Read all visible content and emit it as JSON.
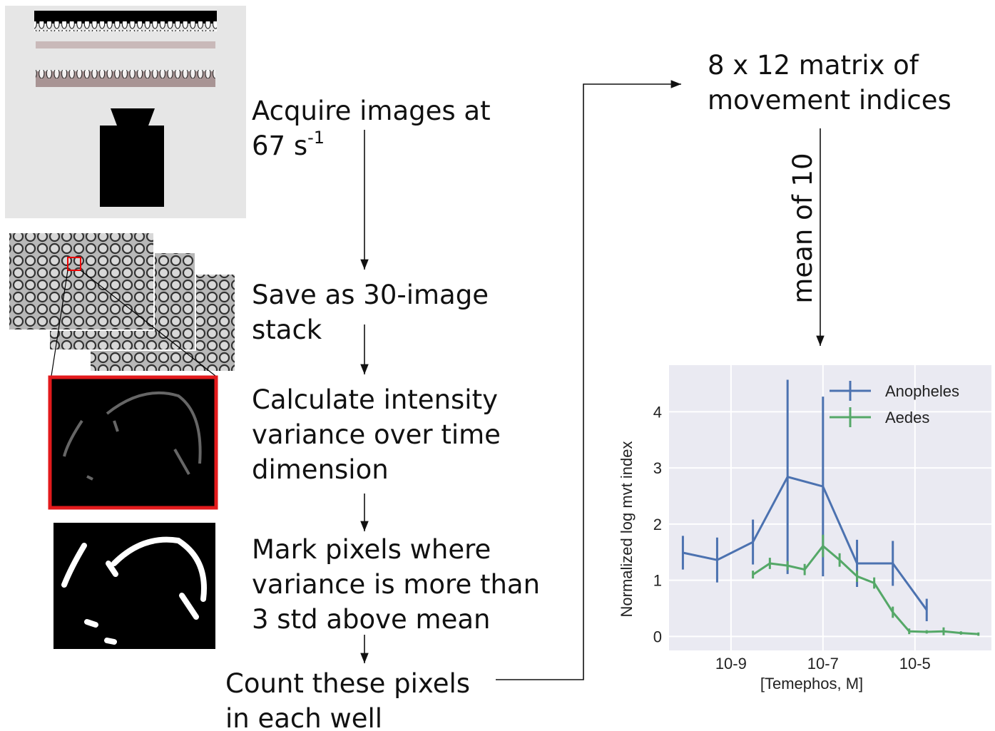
{
  "steps": [
    {
      "lines": [
        "Acquire images at",
        "67 s"
      ],
      "sup": "-1"
    },
    {
      "lines": [
        "Save as 30-image",
        "stack"
      ]
    },
    {
      "lines": [
        "Calculate intensity",
        "variance over time",
        "dimension"
      ]
    },
    {
      "lines": [
        "Mark pixels where",
        "variance is more than",
        "3 std above mean"
      ]
    },
    {
      "lines": [
        "Count these pixels",
        "in each well"
      ]
    }
  ],
  "output": {
    "lines": [
      "8 x 12 matrix of",
      "movement indices"
    ]
  },
  "arrow_label": "mean of 10",
  "chart_data": {
    "type": "line",
    "xlabel": "[Temephos, M]",
    "ylabel": "Normalized log mvt index",
    "xscale": "log",
    "xlim": [
      4.5e-11,
      0.00046
    ],
    "ylim": [
      -0.25,
      4.83
    ],
    "xticks": [
      {
        "value": 1e-09,
        "label": "10-9"
      },
      {
        "value": 1e-07,
        "label": "10-7"
      },
      {
        "value": 1e-05,
        "label": "10-5"
      }
    ],
    "yticks": [
      0,
      1,
      2,
      3,
      4
    ],
    "grid": true,
    "legend": "upper right",
    "series": [
      {
        "name": "Anopheles",
        "color": "#4c72b0",
        "x": [
          9e-11,
          5e-10,
          3e-09,
          1.7e-08,
          1e-07,
          5.5e-07,
          3.3e-06,
          1.8e-05
        ],
        "values": [
          1.49,
          1.36,
          1.68,
          2.84,
          2.67,
          1.3,
          1.3,
          0.47
        ],
        "errors": [
          0.3,
          0.4,
          0.4,
          1.73,
          1.6,
          0.42,
          0.4,
          0.2
        ]
      },
      {
        "name": "Aedes",
        "color": "#55a868",
        "x": [
          3e-09,
          7e-09,
          1.7e-08,
          4e-08,
          1e-07,
          2.3e-07,
          5.5e-07,
          1.3e-06,
          3.3e-06,
          7.5e-06,
          1.8e-05,
          4.2e-05,
          0.0001,
          0.00024
        ],
        "values": [
          1.1,
          1.3,
          1.26,
          1.19,
          1.61,
          1.36,
          1.07,
          0.95,
          0.43,
          0.09,
          0.08,
          0.09,
          0.06,
          0.04
        ],
        "errors": [
          0.07,
          0.1,
          0.08,
          0.1,
          0.2,
          0.12,
          0.1,
          0.1,
          0.1,
          0.05,
          0.03,
          0.07,
          0.03,
          0.03
        ]
      }
    ]
  }
}
